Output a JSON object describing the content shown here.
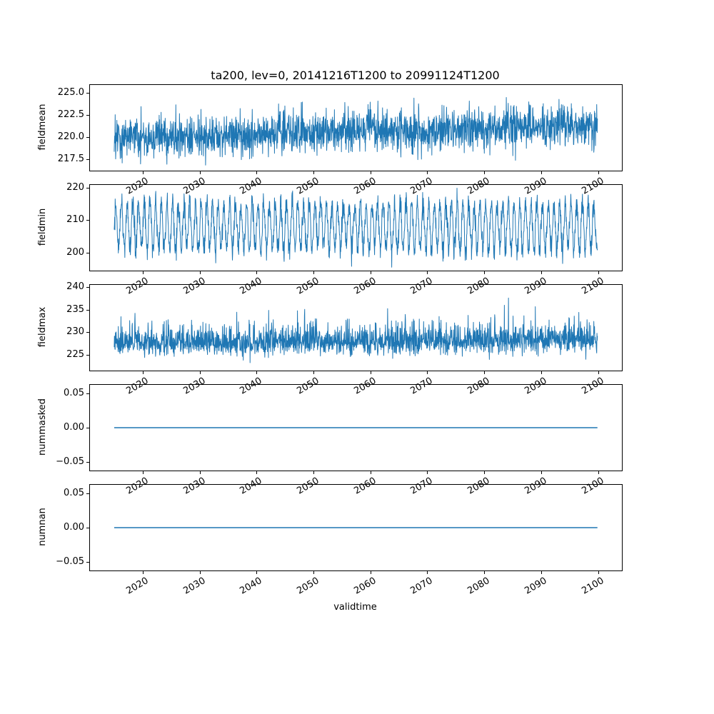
{
  "title": "ta200, lev=0, 20141216T1200 to 20991124T1200",
  "xlabel": "validtime",
  "chart_data": {
    "type": "line",
    "title": "ta200, lev=0, 20141216T1200 to 20991124T1200",
    "line_color": "#1f77b4",
    "legend": "none",
    "grid": false,
    "x": {
      "label": "validtime",
      "start": 2014.96,
      "end": 2099.9,
      "n_points": 2000,
      "xlim": [
        2010.7,
        2104.2
      ],
      "ticks": [
        2020,
        2030,
        2040,
        2050,
        2060,
        2070,
        2080,
        2090,
        2100
      ],
      "tick_labels": [
        "2020",
        "2030",
        "2040",
        "2050",
        "2060",
        "2070",
        "2080",
        "2090",
        "2100"
      ]
    },
    "plots": [
      {
        "ylabel": "fieldmean",
        "ylim": [
          216.2,
          225.9
        ],
        "yticks": [
          217.5,
          220.0,
          222.5,
          225.0
        ],
        "ytick_labels": [
          "217.5",
          "220.0",
          "222.5",
          "225.0"
        ],
        "series": {
          "name": "fieldmean",
          "kind": "noisy",
          "base": 219.9,
          "trend_total": 1.4,
          "noise_std": 1.15,
          "observed_min": 216.8,
          "observed_max": 225.6,
          "seed": 42
        }
      },
      {
        "ylabel": "fieldmin",
        "ylim": [
          194.5,
          220.8
        ],
        "yticks": [
          200,
          210,
          220
        ],
        "ytick_labels": [
          "200",
          "210",
          "220"
        ],
        "series": {
          "name": "fieldmin",
          "kind": "seasonal",
          "base": 208.0,
          "amplitude": 7.0,
          "period_years": 1,
          "noise_std": 1.8,
          "trend_total": 0,
          "observed_min": 195.0,
          "observed_max": 220.0,
          "seed": 7
        }
      },
      {
        "ylabel": "fieldmax",
        "ylim": [
          221.5,
          240.5
        ],
        "yticks": [
          225,
          230,
          235,
          240
        ],
        "ytick_labels": [
          "225",
          "230",
          "235",
          "240"
        ],
        "series": {
          "name": "fieldmax",
          "kind": "spiky",
          "base": 226.8,
          "noise_std": 1.2,
          "spike_scale": 2.2,
          "rare_spike_prob": 0.004,
          "rare_spike_max": 7,
          "trend_total": 0.8,
          "observed_min": 222.0,
          "observed_max": 239.5,
          "seed": 13
        }
      },
      {
        "ylabel": "nummasked",
        "ylim": [
          -0.0625,
          0.0625
        ],
        "yticks": [
          -0.05,
          0.0,
          0.05
        ],
        "ytick_labels": [
          "−0.05",
          "0.00",
          "0.05"
        ],
        "series": {
          "name": "nummasked",
          "kind": "constant",
          "base": 0.0
        }
      },
      {
        "ylabel": "numnan",
        "ylim": [
          -0.0625,
          0.0625
        ],
        "yticks": [
          -0.05,
          0.0,
          0.05
        ],
        "ytick_labels": [
          "−0.05",
          "0.00",
          "0.05"
        ],
        "series": {
          "name": "numnan",
          "kind": "constant",
          "base": 0.0
        }
      }
    ]
  }
}
